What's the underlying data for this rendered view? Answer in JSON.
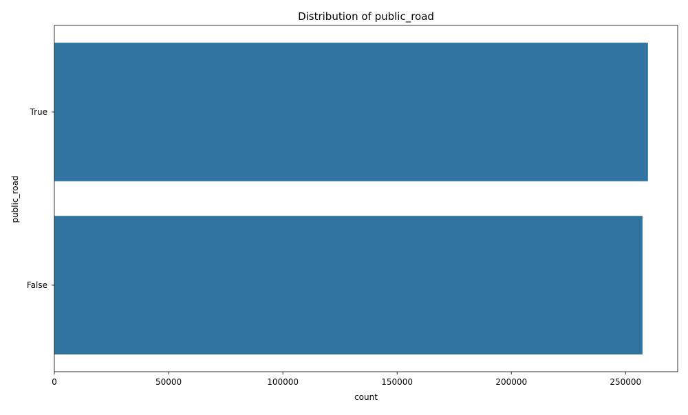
{
  "chart_data": {
    "type": "bar",
    "orientation": "horizontal",
    "title": "Distribution of public_road",
    "xlabel": "count",
    "ylabel": "public_road",
    "categories": [
      "True",
      "False"
    ],
    "values": [
      259800,
      257400
    ],
    "xlim": [
      0,
      272800
    ],
    "xticks": [
      0,
      50000,
      100000,
      150000,
      200000,
      250000
    ],
    "xtick_labels": [
      "0",
      "50000",
      "100000",
      "150000",
      "200000",
      "250000"
    ],
    "grid": false,
    "bar_color": "#3274a1"
  }
}
